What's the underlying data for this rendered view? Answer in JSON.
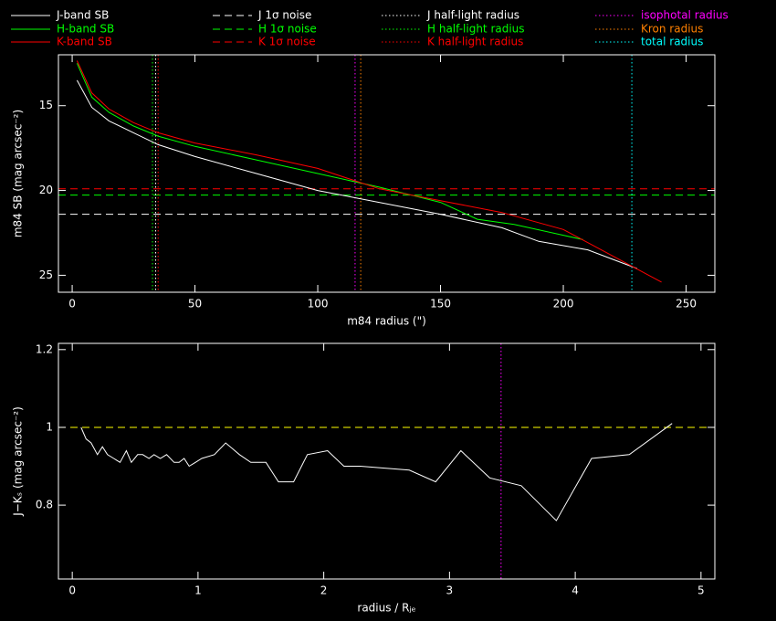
{
  "chart_data": [
    {
      "type": "line",
      "xlabel": "m84 radius (\")",
      "ylabel": "m84 SB (mag arcsec⁻²)",
      "xlim": [
        -5.6,
        261.7
      ],
      "ylim": [
        12,
        26
      ],
      "y_inverted": true,
      "xticks": [
        0,
        50,
        100,
        150,
        200,
        250
      ],
      "yticks": [
        15,
        20,
        25
      ],
      "series": [
        {
          "name": "J-band SB",
          "color": "#ffffff",
          "style": "solid",
          "x": [
            2,
            8,
            15,
            25,
            35,
            50,
            75,
            100,
            125,
            150,
            175,
            190,
            210,
            230
          ],
          "values": [
            13.5,
            15.1,
            15.9,
            16.6,
            17.3,
            18.0,
            19.0,
            20.0,
            20.7,
            21.4,
            22.2,
            23.0,
            23.5,
            24.6
          ]
        },
        {
          "name": "H-band SB",
          "color": "#00ff00",
          "style": "solid",
          "x": [
            2,
            8,
            15,
            25,
            35,
            50,
            75,
            100,
            125,
            150,
            165,
            180,
            208
          ],
          "values": [
            12.5,
            14.5,
            15.4,
            16.2,
            16.8,
            17.4,
            18.2,
            19.0,
            19.8,
            20.7,
            21.7,
            22.0,
            22.9
          ]
        },
        {
          "name": "K-band SB",
          "color": "#ff0000",
          "style": "solid",
          "x": [
            2,
            8,
            15,
            25,
            35,
            50,
            75,
            100,
            125,
            150,
            175,
            200,
            240
          ],
          "values": [
            12.35,
            14.25,
            15.2,
            16.0,
            16.6,
            17.2,
            17.9,
            18.7,
            19.9,
            20.6,
            21.3,
            22.3,
            25.4
          ]
        }
      ],
      "hlines": [
        {
          "name": "J 1σ noise",
          "color": "#ffffff",
          "style": "dashed",
          "value": 21.4
        },
        {
          "name": "H 1σ noise",
          "color": "#00ff00",
          "style": "dashed",
          "value": 20.27
        },
        {
          "name": "K 1σ noise",
          "color": "#ff0000",
          "style": "dashed",
          "value": 19.9
        }
      ],
      "vlines": [
        {
          "name": "J half-light radius",
          "color": "#ffffff",
          "style": "dotted",
          "value": 34.0
        },
        {
          "name": "H half-light radius",
          "color": "#00ff00",
          "style": "dotted",
          "value": 32.7
        },
        {
          "name": "K half-light radius",
          "color": "#ff0000",
          "style": "dotted",
          "value": 35.0
        },
        {
          "name": "isophotal radius",
          "color": "#ff00ff",
          "style": "dotted",
          "value": 115.2
        },
        {
          "name": "Kron radius",
          "color": "#ff8000",
          "style": "dotted",
          "value": 117.5
        },
        {
          "name": "total radius",
          "color": "#00ffff",
          "style": "dotted",
          "value": 227.9
        }
      ],
      "legend": true
    },
    {
      "type": "line",
      "xlabel": "radius / Rⱼₑ",
      "ylabel": "J−Kₛ (mag arcsec⁻²)",
      "xlim": [
        -0.11,
        5.11
      ],
      "ylim": [
        0.61,
        1.216
      ],
      "xticks": [
        0,
        1,
        2,
        3,
        4,
        5
      ],
      "yticks": [
        0.8,
        1,
        1.2
      ],
      "series": [
        {
          "color": "#ffffff",
          "style": "solid",
          "x": [
            0.07,
            0.11,
            0.15,
            0.2,
            0.24,
            0.28,
            0.33,
            0.38,
            0.43,
            0.47,
            0.52,
            0.56,
            0.61,
            0.65,
            0.7,
            0.75,
            0.81,
            0.85,
            0.89,
            0.93,
            0.98,
            1.03,
            1.13,
            1.22,
            1.33,
            1.42,
            1.54,
            1.64,
            1.76,
            1.87,
            2.03,
            2.16,
            2.29,
            2.68,
            2.89,
            3.09,
            3.32,
            3.57,
            3.85,
            4.13,
            4.43,
            4.77
          ],
          "values": [
            1.0,
            0.97,
            0.96,
            0.93,
            0.95,
            0.93,
            0.92,
            0.91,
            0.94,
            0.91,
            0.93,
            0.93,
            0.92,
            0.93,
            0.92,
            0.93,
            0.91,
            0.91,
            0.92,
            0.9,
            0.91,
            0.92,
            0.93,
            0.96,
            0.93,
            0.91,
            0.91,
            0.86,
            0.86,
            0.93,
            0.94,
            0.9,
            0.9,
            0.89,
            0.86,
            0.94,
            0.87,
            0.85,
            0.76,
            0.92,
            0.93,
            1.01
          ]
        }
      ],
      "hlines": [
        {
          "color": "#ffff00",
          "style": "dashed",
          "value": 1
        }
      ],
      "vlines": [
        {
          "color": "#ff00ff",
          "style": "dotted",
          "value": 3.41
        }
      ],
      "legend": false
    }
  ]
}
